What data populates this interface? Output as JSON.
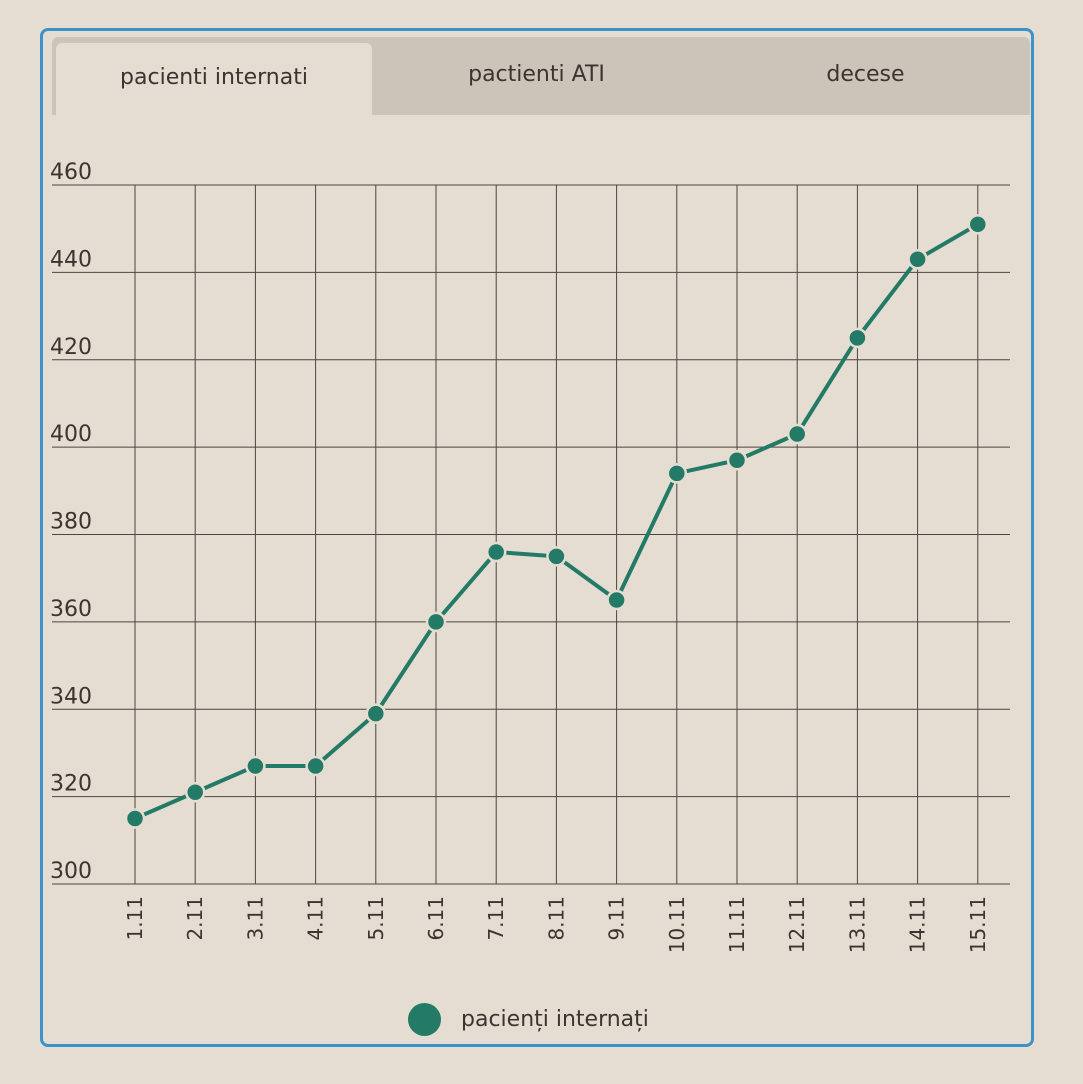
{
  "tabs": [
    {
      "label": "pacienti internati",
      "active": true
    },
    {
      "label": "pactienti ATI",
      "active": false
    },
    {
      "label": "decese",
      "active": false
    }
  ],
  "colors": {
    "series": "#237a66",
    "grid": "#4a4540",
    "frame": "#3d92c8",
    "background": "#e5ddd1",
    "tab_bar": "#ccc4b8"
  },
  "legend": {
    "label": "pacienți internați",
    "placement": "bottom-center"
  },
  "chart_data": {
    "type": "line",
    "categories": [
      "1.11",
      "2.11",
      "3.11",
      "4.11",
      "5.11",
      "6.11",
      "7.11",
      "8.11",
      "9.11",
      "10.11",
      "11.11",
      "12.11",
      "13.11",
      "14.11",
      "15.11"
    ],
    "series": [
      {
        "name": "pacienți internați",
        "values": [
          315,
          321,
          327,
          327,
          339,
          360,
          376,
          375,
          365,
          394,
          397,
          403,
          425,
          443,
          451
        ]
      }
    ],
    "ylim": [
      300,
      460
    ],
    "yticks": [
      300,
      320,
      340,
      360,
      380,
      400,
      420,
      440,
      460
    ],
    "grid": true
  }
}
